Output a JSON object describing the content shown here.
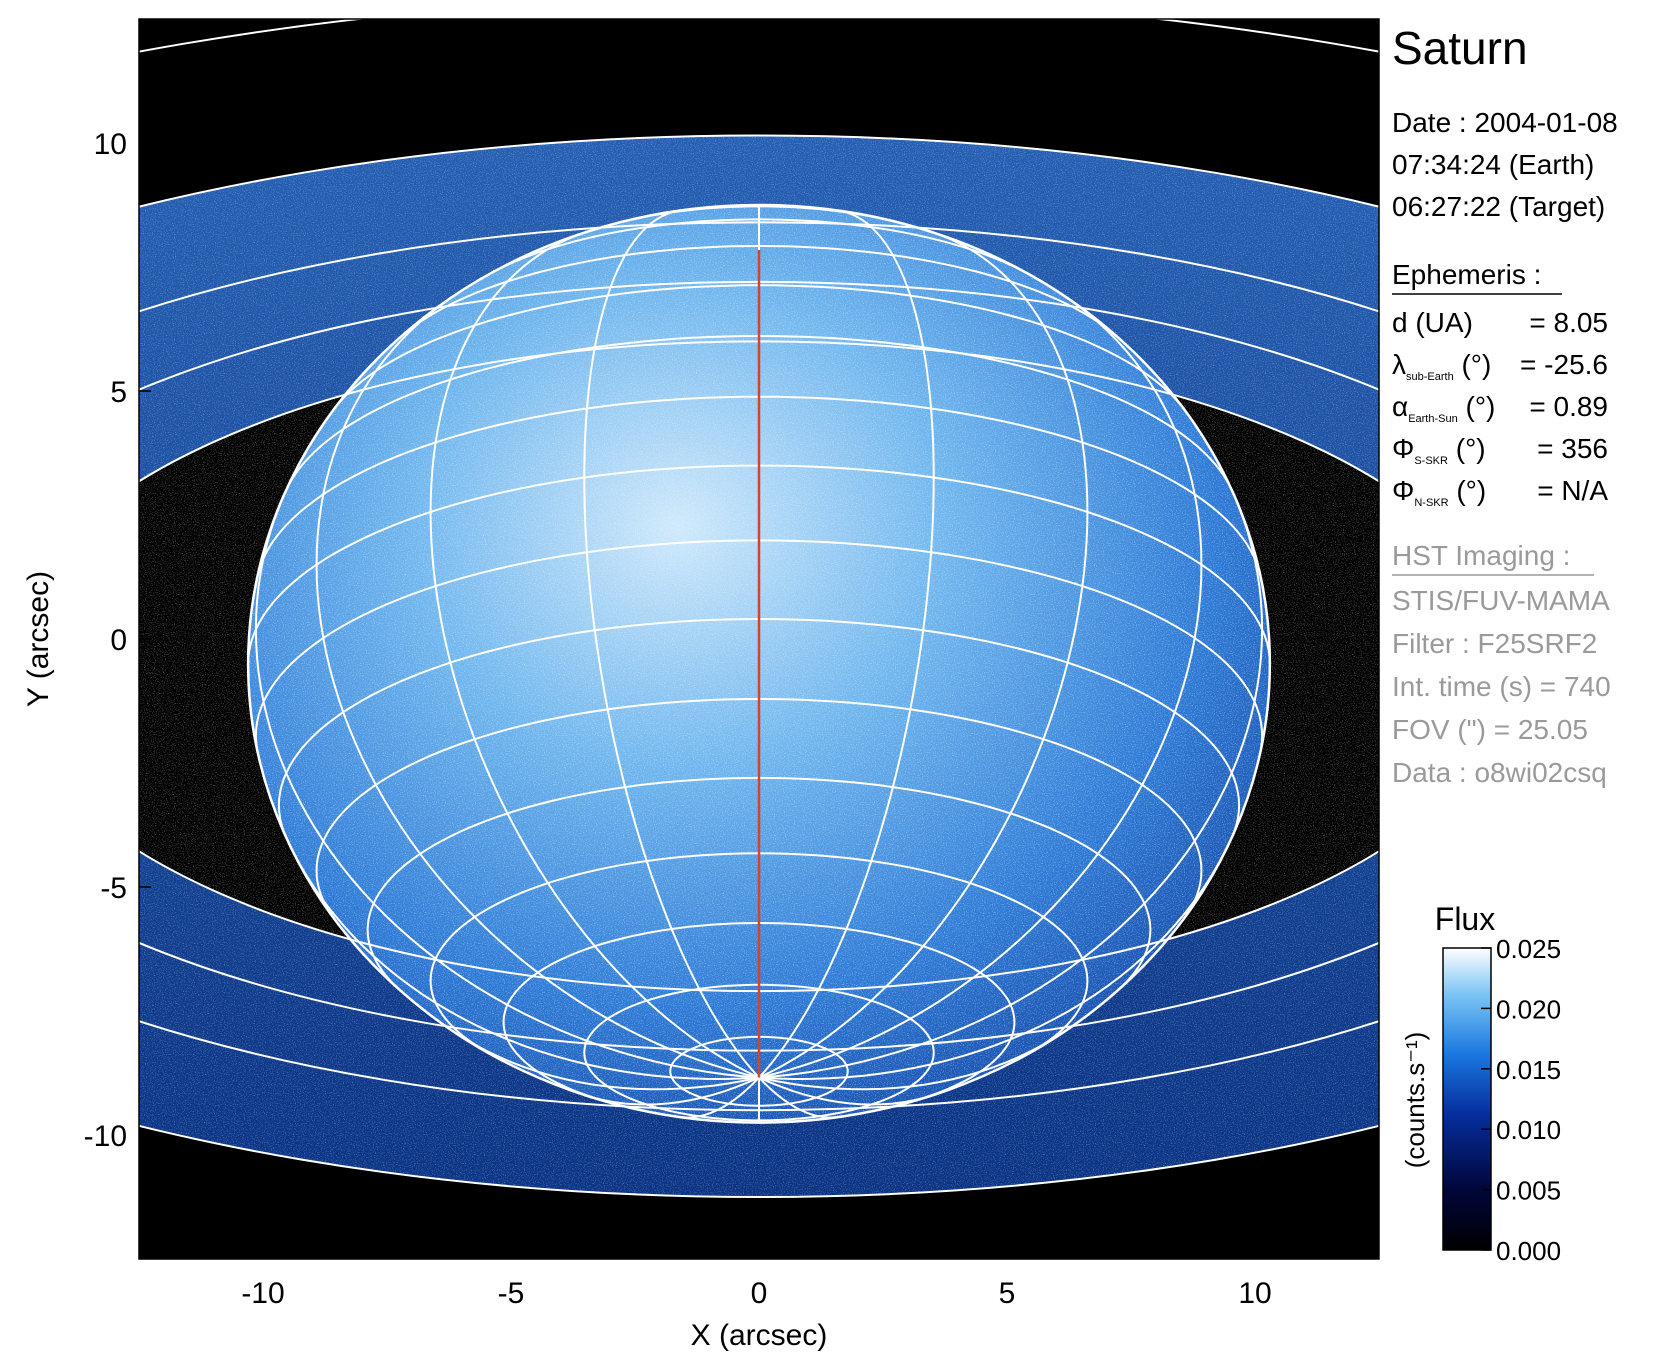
{
  "chart_data": {
    "type": "heatmap",
    "title": "Saturn",
    "xlabel": "X (arcsec)",
    "ylabel": "Y (arcsec)",
    "xlim": [
      -12.5,
      12.5
    ],
    "ylim": [
      -12.5,
      12.5
    ],
    "xticks": [
      -10,
      -5,
      0,
      5,
      10
    ],
    "yticks": [
      -10,
      -5,
      0,
      5,
      10
    ],
    "planet": {
      "equatorial_radius_arcsec": 10.3,
      "polar_radius_arcsec": 9.25,
      "center": [
        0,
        -0.5
      ],
      "sub_earth_latitude_deg": -25.6
    },
    "rings": {
      "semi_major_arcsec": [
        31.5,
        25.0,
        20.8,
        18.0,
        15.2
      ],
      "semi_minor_arcsec": [
        13.5,
        10.7,
        8.95,
        7.75,
        6.55
      ],
      "center": [
        0,
        -0.55
      ]
    },
    "meridian_color": "#d2452a",
    "grid_color": "#ffffff",
    "colorbar": {
      "title": "Flux",
      "label": "(counts.s⁻¹)",
      "min": 0.0,
      "max": 0.025,
      "ticks": [
        "0.025",
        "0.020",
        "0.015",
        "0.010",
        "0.005",
        "0.000"
      ],
      "colors": [
        "#000000",
        "#01063a",
        "#052e9e",
        "#1b78e0",
        "#7dc6f5",
        "#ffffff"
      ]
    }
  },
  "info": {
    "title": "Saturn",
    "date_label": "Date : 2004-01-08",
    "earth_time": "07:34:24 (Earth)",
    "target_time": "06:27:22 (Target)",
    "ephemeris_header": "Ephemeris :",
    "ephemeris": [
      {
        "symbol": "d (UA)",
        "sub": "",
        "unit": "",
        "value": "= 8.05"
      },
      {
        "symbol": "λ",
        "sub": "sub-Earth",
        "unit": " (°)",
        "value": "= -25.6"
      },
      {
        "symbol": "α",
        "sub": "Earth-Sun",
        "unit": " (°)",
        "value": "= 0.89"
      },
      {
        "symbol": "Φ",
        "sub": "S-SKR",
        "unit": " (°)",
        "value": "= 356"
      },
      {
        "symbol": "Φ",
        "sub": "N-SKR",
        "unit": " (°)",
        "value": "= N/A"
      }
    ],
    "imaging_header": "HST Imaging :",
    "imaging": [
      "STIS/FUV-MAMA",
      "Filter : F25SRF2",
      "Int. time (s) = 740",
      "FOV (\") = 25.05",
      "Data : o8wi02csq"
    ]
  }
}
